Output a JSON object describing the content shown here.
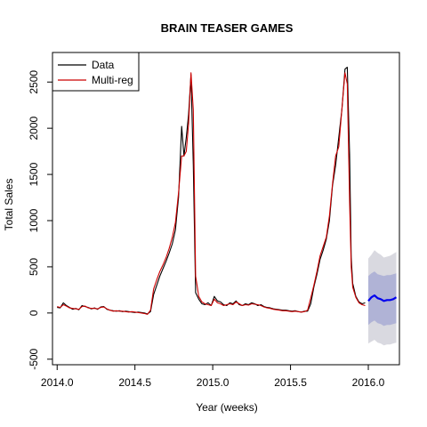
{
  "chart_data": {
    "type": "line",
    "title": "BRAIN TEASER GAMES",
    "xlabel": "Year (weeks)",
    "ylabel": "Total Sales",
    "xlim": [
      2013.97,
      2016.2
    ],
    "ylim": [
      -560,
      2820
    ],
    "x_ticks": [
      2014.0,
      2014.5,
      2015.0,
      2015.5,
      2016.0
    ],
    "x_tick_labels": [
      "2014.0",
      "2014.5",
      "2015.0",
      "2015.5",
      "2016.0"
    ],
    "y_ticks": [
      -500,
      0,
      500,
      1000,
      1500,
      2000,
      2500
    ],
    "y_tick_labels": [
      "-500",
      "0",
      "500",
      "1000",
      "1500",
      "2000",
      "2500"
    ],
    "grid": false,
    "legend": {
      "position": "top-left",
      "entries": [
        {
          "label": "Data",
          "color": "#000000"
        },
        {
          "label": "Multi-reg",
          "color": "#cc0000"
        }
      ]
    },
    "colors": {
      "data": "#000000",
      "model": "#cc0000",
      "forecast": "#0000ee",
      "band80": "#b0b3d6",
      "band95": "#d9d9e0"
    },
    "series": [
      {
        "name": "Data",
        "x": [
          2014.0,
          2014.02,
          2014.04,
          2014.06,
          2014.08,
          2014.1,
          2014.12,
          2014.14,
          2014.16,
          2014.18,
          2014.2,
          2014.22,
          2014.24,
          2014.26,
          2014.28,
          2014.3,
          2014.32,
          2014.34,
          2014.36,
          2014.38,
          2014.4,
          2014.42,
          2014.44,
          2014.46,
          2014.48,
          2014.5,
          2014.52,
          2014.54,
          2014.56,
          2014.58,
          2014.6,
          2014.62,
          2014.64,
          2014.66,
          2014.68,
          2014.7,
          2014.72,
          2014.74,
          2014.76,
          2014.78,
          2014.8,
          2014.815,
          2014.83,
          2014.845,
          2014.86,
          2014.875,
          2014.89,
          2014.91,
          2014.93,
          2014.95,
          2014.97,
          2014.99,
          2015.01,
          2015.03,
          2015.05,
          2015.07,
          2015.09,
          2015.11,
          2015.13,
          2015.15,
          2015.17,
          2015.19,
          2015.21,
          2015.23,
          2015.25,
          2015.27,
          2015.29,
          2015.31,
          2015.33,
          2015.35,
          2015.37,
          2015.39,
          2015.41,
          2015.43,
          2015.45,
          2015.47,
          2015.49,
          2015.51,
          2015.53,
          2015.55,
          2015.57,
          2015.59,
          2015.61,
          2015.63,
          2015.65,
          2015.67,
          2015.69,
          2015.71,
          2015.73,
          2015.75,
          2015.77,
          2015.79,
          2015.81,
          2015.83,
          2015.85,
          2015.865,
          2015.88,
          2015.89,
          2015.9,
          2015.92,
          2015.94,
          2015.96,
          2015.98
        ],
        "values": [
          60,
          55,
          110,
          80,
          60,
          40,
          50,
          35,
          80,
          70,
          60,
          45,
          55,
          40,
          65,
          70,
          40,
          30,
          25,
          20,
          25,
          15,
          20,
          15,
          10,
          5,
          10,
          5,
          0,
          -10,
          15,
          200,
          300,
          400,
          480,
          560,
          650,
          750,
          900,
          1250,
          2020,
          1700,
          1900,
          2150,
          2580,
          1600,
          220,
          150,
          100,
          90,
          110,
          80,
          180,
          130,
          120,
          90,
          80,
          110,
          100,
          130,
          90,
          80,
          100,
          90,
          110,
          100,
          80,
          90,
          70,
          60,
          55,
          45,
          40,
          35,
          30,
          30,
          25,
          20,
          25,
          15,
          10,
          20,
          20,
          100,
          280,
          420,
          580,
          680,
          800,
          1000,
          1380,
          1600,
          1900,
          2200,
          2640,
          2660,
          1720,
          600,
          320,
          180,
          120,
          100,
          110
        ]
      },
      {
        "name": "Multi-reg",
        "x": [
          2014.0,
          2014.02,
          2014.04,
          2014.06,
          2014.08,
          2014.1,
          2014.12,
          2014.14,
          2014.16,
          2014.18,
          2014.2,
          2014.22,
          2014.24,
          2014.26,
          2014.28,
          2014.3,
          2014.32,
          2014.34,
          2014.36,
          2014.38,
          2014.4,
          2014.42,
          2014.44,
          2014.46,
          2014.48,
          2014.5,
          2014.52,
          2014.54,
          2014.56,
          2014.58,
          2014.6,
          2014.62,
          2014.64,
          2014.66,
          2014.68,
          2014.7,
          2014.72,
          2014.74,
          2014.76,
          2014.78,
          2014.8,
          2014.815,
          2014.83,
          2014.845,
          2014.86,
          2014.875,
          2014.89,
          2014.91,
          2014.93,
          2014.95,
          2014.97,
          2014.99,
          2015.01,
          2015.03,
          2015.05,
          2015.07,
          2015.09,
          2015.11,
          2015.13,
          2015.15,
          2015.17,
          2015.19,
          2015.21,
          2015.23,
          2015.25,
          2015.27,
          2015.29,
          2015.31,
          2015.33,
          2015.35,
          2015.37,
          2015.39,
          2015.41,
          2015.43,
          2015.45,
          2015.47,
          2015.49,
          2015.51,
          2015.53,
          2015.55,
          2015.57,
          2015.59,
          2015.61,
          2015.63,
          2015.65,
          2015.67,
          2015.69,
          2015.71,
          2015.73,
          2015.75,
          2015.77,
          2015.79,
          2015.81,
          2015.83,
          2015.85,
          2015.865,
          2015.88,
          2015.89,
          2015.9,
          2015.92,
          2015.94,
          2015.96,
          2015.98
        ],
        "values": [
          70,
          60,
          90,
          75,
          55,
          50,
          45,
          40,
          70,
          75,
          55,
          50,
          50,
          45,
          60,
          65,
          45,
          30,
          20,
          25,
          20,
          20,
          15,
          10,
          15,
          10,
          5,
          0,
          -5,
          -15,
          30,
          260,
          360,
          450,
          520,
          600,
          700,
          820,
          980,
          1300,
          1700,
          1700,
          1750,
          2050,
          2600,
          2200,
          400,
          180,
          120,
          100,
          90,
          80,
          150,
          110,
          100,
          80,
          90,
          100,
          90,
          120,
          100,
          80,
          90,
          85,
          100,
          95,
          90,
          80,
          65,
          55,
          50,
          40,
          35,
          30,
          25,
          25,
          20,
          15,
          20,
          15,
          10,
          15,
          30,
          160,
          300,
          450,
          620,
          720,
          820,
          1050,
          1400,
          1700,
          1800,
          2200,
          2600,
          2480,
          1200,
          500,
          280,
          170,
          110,
          90,
          80
        ]
      },
      {
        "name": "",
        "x": [
          2016.0,
          2016.02,
          2016.04,
          2016.06,
          2016.08,
          2016.1,
          2016.12,
          2016.14,
          2016.16,
          2016.18
        ],
        "values": [
          130,
          170,
          190,
          160,
          150,
          130,
          140,
          140,
          150,
          170
        ],
        "lo80": [
          -130,
          -100,
          -80,
          -110,
          -120,
          -140,
          -130,
          -130,
          -120,
          -110
        ],
        "hi80": [
          400,
          430,
          450,
          420,
          410,
          400,
          410,
          410,
          420,
          430
        ],
        "lo95": [
          -330,
          -310,
          -290,
          -320,
          -330,
          -350,
          -340,
          -340,
          -330,
          -320
        ],
        "hi95": [
          590,
          630,
          680,
          650,
          630,
          600,
          610,
          620,
          640,
          660
        ]
      }
    ]
  }
}
